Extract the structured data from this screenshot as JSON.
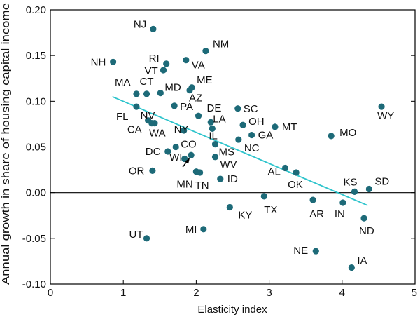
{
  "chart_data": {
    "type": "scatter",
    "xlabel": "Elasticity index",
    "ylabel": "Annual growth in share of housing capital income",
    "xlim": [
      0,
      5
    ],
    "ylim": [
      -0.1,
      0.2
    ],
    "xticks": [
      "0",
      "1",
      "2",
      "3",
      "4",
      "5"
    ],
    "yticks": [
      "-0.10",
      "-0.05",
      "0.00",
      "0.05",
      "0.10",
      "0.15",
      "0.20"
    ],
    "colors": {
      "point": "#1d6a78",
      "trend": "#2ec4cc",
      "axis": "#000000"
    },
    "trend_line": {
      "x": [
        0.85,
        4.35
      ],
      "y": [
        0.105,
        -0.014
      ]
    },
    "points": [
      {
        "label": "NJ",
        "x": 1.41,
        "y": 0.179
      },
      {
        "label": "NM",
        "x": 2.13,
        "y": 0.155
      },
      {
        "label": "NH",
        "x": 0.86,
        "y": 0.143
      },
      {
        "label": "RI",
        "x": 1.59,
        "y": 0.141
      },
      {
        "label": "VA",
        "x": 1.86,
        "y": 0.145
      },
      {
        "label": "VT",
        "x": 1.55,
        "y": 0.134
      },
      {
        "label": "MA",
        "x": 1.18,
        "y": 0.108
      },
      {
        "label": "CT",
        "x": 1.32,
        "y": 0.108
      },
      {
        "label": "MD",
        "x": 1.51,
        "y": 0.109
      },
      {
        "label": "ME",
        "x": 1.94,
        "y": 0.115
      },
      {
        "label": "AZ",
        "x": 1.91,
        "y": 0.112
      },
      {
        "label": "FL",
        "x": 1.18,
        "y": 0.094
      },
      {
        "label": "PA",
        "x": 1.7,
        "y": 0.095
      },
      {
        "label": "DE",
        "x": 2.03,
        "y": 0.084
      },
      {
        "label": "SC",
        "x": 2.57,
        "y": 0.092
      },
      {
        "label": "NV",
        "x": 1.34,
        "y": 0.079
      },
      {
        "label": "CA",
        "x": 1.39,
        "y": 0.076
      },
      {
        "label": "LA",
        "x": 2.2,
        "y": 0.077
      },
      {
        "label": "OH",
        "x": 2.64,
        "y": 0.074
      },
      {
        "label": "NY",
        "x": 1.83,
        "y": 0.068
      },
      {
        "label": "IL",
        "x": 2.22,
        "y": 0.07
      },
      {
        "label": "MT",
        "x": 3.08,
        "y": 0.072
      },
      {
        "label": "WA",
        "x": 1.43,
        "y": 0.076
      },
      {
        "label": "GA",
        "x": 2.76,
        "y": 0.063
      },
      {
        "label": "NC",
        "x": 2.58,
        "y": 0.058
      },
      {
        "label": "MO",
        "x": 3.85,
        "y": 0.062
      },
      {
        "label": "WY",
        "x": 4.54,
        "y": 0.094
      },
      {
        "label": "CO",
        "x": 1.72,
        "y": 0.05
      },
      {
        "label": "MS",
        "x": 2.26,
        "y": 0.053
      },
      {
        "label": "DC",
        "x": 1.61,
        "y": 0.045
      },
      {
        "label": "WV",
        "x": 2.26,
        "y": 0.039
      },
      {
        "label": "WI",
        "x": 1.93,
        "y": 0.041
      },
      {
        "label": "WI",
        "x": 1.84,
        "y": 0.037
      },
      {
        "label": "OR",
        "x": 1.4,
        "y": 0.024
      },
      {
        "label": "AL",
        "x": 3.22,
        "y": 0.027
      },
      {
        "label": "MN",
        "x": 2.0,
        "y": 0.023
      },
      {
        "label": "TN",
        "x": 2.05,
        "y": 0.022
      },
      {
        "label": "ID",
        "x": 2.33,
        "y": 0.015
      },
      {
        "label": "OK",
        "x": 3.37,
        "y": 0.022
      },
      {
        "label": "KS",
        "x": 4.17,
        "y": 0.001
      },
      {
        "label": "SD",
        "x": 4.37,
        "y": 0.004
      },
      {
        "label": "TX",
        "x": 2.93,
        "y": -0.004
      },
      {
        "label": "AR",
        "x": 3.6,
        "y": -0.008
      },
      {
        "label": "IN",
        "x": 4.01,
        "y": -0.011
      },
      {
        "label": "KY",
        "x": 2.46,
        "y": -0.016
      },
      {
        "label": "ND",
        "x": 4.3,
        "y": -0.028
      },
      {
        "label": "MI",
        "x": 2.1,
        "y": -0.04
      },
      {
        "label": "UT",
        "x": 1.32,
        "y": -0.05
      },
      {
        "label": "NE",
        "x": 3.64,
        "y": -0.064
      },
      {
        "label": "IA",
        "x": 4.13,
        "y": -0.082
      }
    ]
  }
}
